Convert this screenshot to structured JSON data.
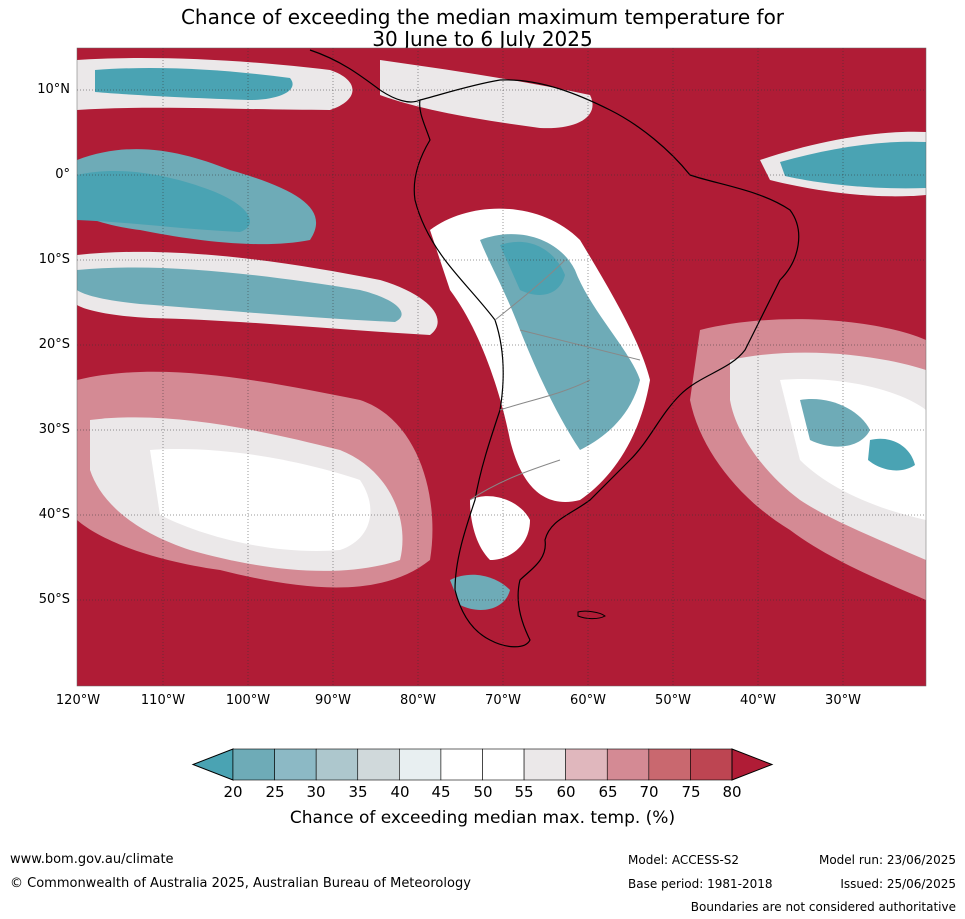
{
  "title_line1": "Chance of exceeding the median maximum temperature for",
  "title_line2": "30 June to 6 July 2025",
  "lat_labels": [
    "10°N",
    "0°",
    "10°S",
    "20°S",
    "30°S",
    "40°S",
    "50°S"
  ],
  "lon_labels": [
    "120°W",
    "110°W",
    "100°W",
    "90°W",
    "80°W",
    "70°W",
    "60°W",
    "50°W",
    "40°W",
    "30°W"
  ],
  "colorbar": {
    "ticks": [
      "20",
      "25",
      "30",
      "35",
      "40",
      "45",
      "50",
      "55",
      "60",
      "65",
      "70",
      "75",
      "80"
    ],
    "colors": [
      "#4aa3b3",
      "#6eabb7",
      "#8cb9c5",
      "#adc7cd",
      "#d0d9db",
      "#e8eff1",
      "#ffffff",
      "#ffffff",
      "#ebe8e9",
      "#e0b7bd",
      "#d48a94",
      "#c9686f",
      "#bd4552",
      "#b01c36"
    ],
    "label": "Chance of exceeding median max. temp. (%)"
  },
  "footer": {
    "website": "www.bom.gov.au/climate",
    "copyright": "© Commonwealth of Australia 2025, Australian Bureau of Meteorology",
    "model": "Model: ACCESS-S2",
    "base_period": "Base period: 1981-2018",
    "model_run": "Model run: 23/06/2025",
    "issued": "Issued: 25/06/2025",
    "disclaimer": "Boundaries are not considered authoritative"
  }
}
